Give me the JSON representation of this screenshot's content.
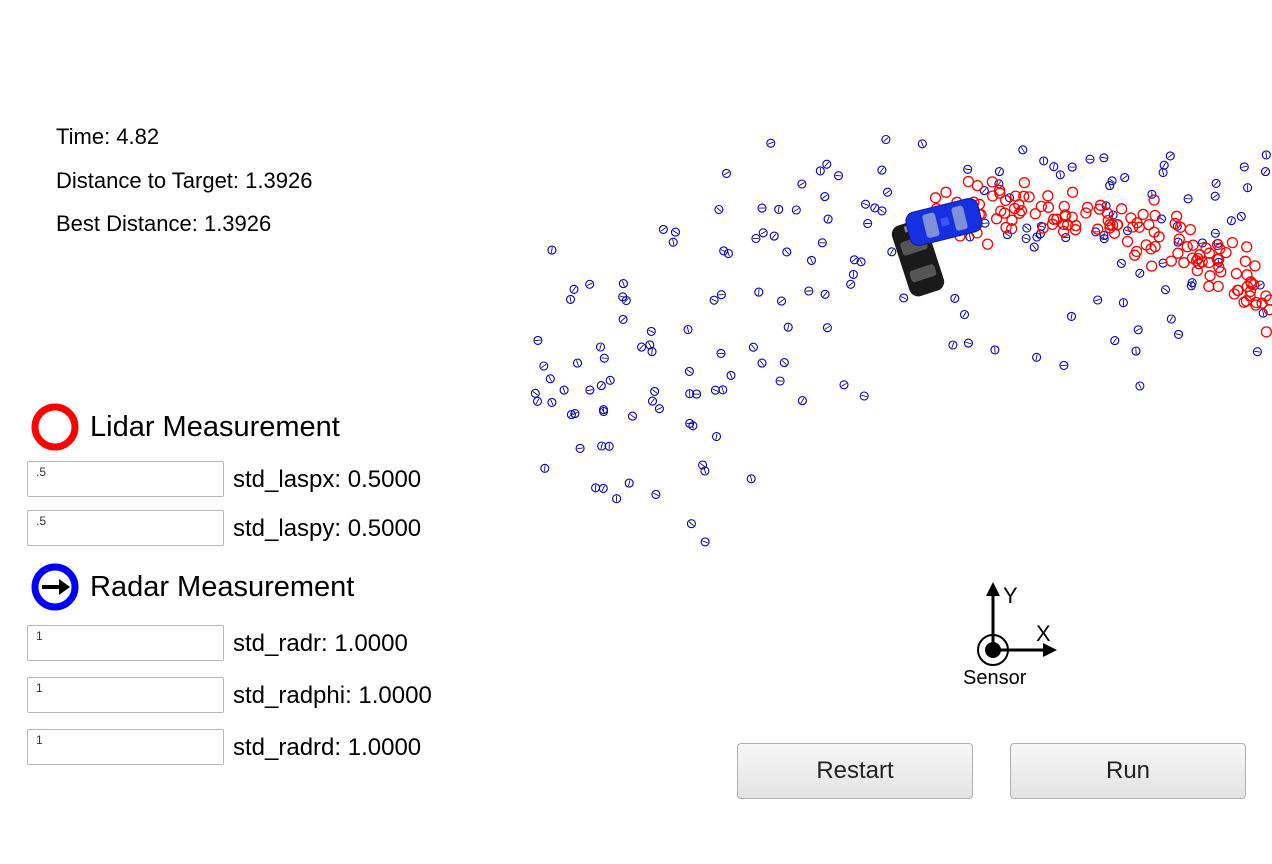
{
  "status": {
    "time_label": "Time: 4.82",
    "distance_label": "Distance to Target: 1.3926",
    "best_label": "Best Distance: 1.3926"
  },
  "legend": {
    "lidar_label": "Lidar Measurement",
    "lidar_icon": "red-ring-icon",
    "lidar_color": "#ff0000",
    "radar_label": "Radar Measurement",
    "radar_icon": "blue-ring-arrow-icon",
    "radar_color": "#0000ff"
  },
  "params": {
    "std_laspx": {
      "value": ".5",
      "label": "std_laspx: 0.5000"
    },
    "std_laspy": {
      "value": ".5",
      "label": "std_laspy: 0.5000"
    },
    "std_radr": {
      "value": "1",
      "label": "std_radr: 1.0000"
    },
    "std_radphi": {
      "value": "1",
      "label": "std_radphi: 1.0000"
    },
    "std_radrd": {
      "value": "1",
      "label": "std_radrd: 1.0000"
    }
  },
  "sensor": {
    "x_label": "X",
    "y_label": "Y",
    "caption": "Sensor"
  },
  "buttons": {
    "restart_label": "Restart",
    "run_label": "Run"
  }
}
